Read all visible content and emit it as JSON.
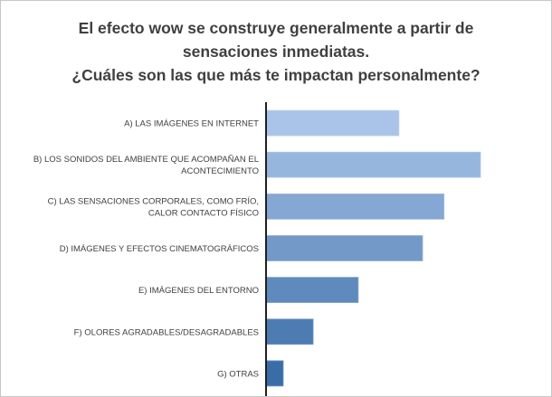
{
  "chart_data": {
    "type": "bar",
    "orientation": "horizontal",
    "title_lines": [
      "El efecto wow se construye generalmente a partir de",
      "sensaciones inmediatas.",
      "¿Cuáles son las que más te impactan personalmente?"
    ],
    "categories": [
      [
        "A) LAS IMÁGENES EN INTERNET"
      ],
      [
        "B) LOS SONIDOS DEL AMBIENTE QUE ACOMPAÑAN EL",
        "ACONTECIMIENTO"
      ],
      [
        "C) LAS SENSACIONES CORPORALES, COMO FRÍO,",
        "CALOR CONTACTO FÍSICO"
      ],
      [
        "D) IMÁGENES Y EFECTOS CINEMATOGRÁFICOS"
      ],
      [
        "E) IMÁGENES DEL ENTORNO"
      ],
      [
        "F) OLORES AGRADABLES/DESAGRADABLES"
      ],
      [
        "G) OTRAS"
      ]
    ],
    "values": [
      0.62,
      1.0,
      0.83,
      0.73,
      0.43,
      0.22,
      0.08
    ],
    "colors": {
      "top": "#a9c4e8",
      "bottom": "#3a6da8",
      "axis": "#1f1f1f"
    },
    "grid": false,
    "legend": "none"
  }
}
